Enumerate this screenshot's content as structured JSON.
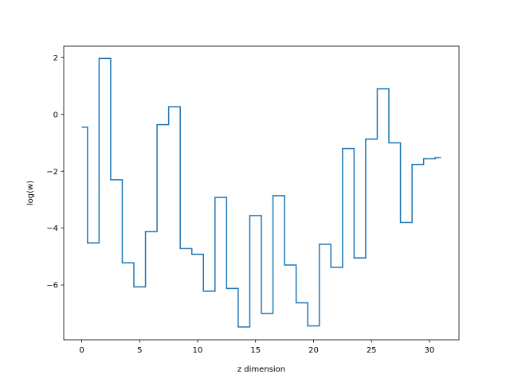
{
  "chart_data": {
    "type": "line",
    "drawstyle": "steps-mid",
    "title": "",
    "xlabel": "z dimension",
    "ylabel": "log(w)",
    "xlim": [
      -1.55,
      32.55
    ],
    "ylim": [
      -7.93,
      2.4
    ],
    "xticks": [
      0,
      5,
      10,
      15,
      20,
      25,
      30
    ],
    "yticks": [
      -6,
      -4,
      -2,
      0,
      2
    ],
    "grid": false,
    "legend": "none",
    "series": [
      {
        "color": "#1f77b4",
        "x": [
          0,
          1,
          2,
          3,
          4,
          5,
          6,
          7,
          8,
          9,
          10,
          11,
          12,
          13,
          14,
          15,
          16,
          17,
          18,
          19,
          20,
          21,
          22,
          23,
          24,
          25,
          26,
          27,
          28,
          29,
          30,
          31
        ],
        "y": [
          -0.45,
          -4.52,
          1.97,
          -2.3,
          -5.22,
          -6.07,
          -4.12,
          -0.36,
          0.27,
          -4.72,
          -4.92,
          -6.22,
          -2.92,
          -6.12,
          -7.48,
          -3.56,
          -7.0,
          -2.86,
          -5.3,
          -6.63,
          -7.44,
          -4.57,
          -5.38,
          -1.2,
          -5.05,
          -0.87,
          0.9,
          -1.0,
          -3.8,
          -1.76,
          -1.56,
          -1.52
        ]
      }
    ]
  }
}
